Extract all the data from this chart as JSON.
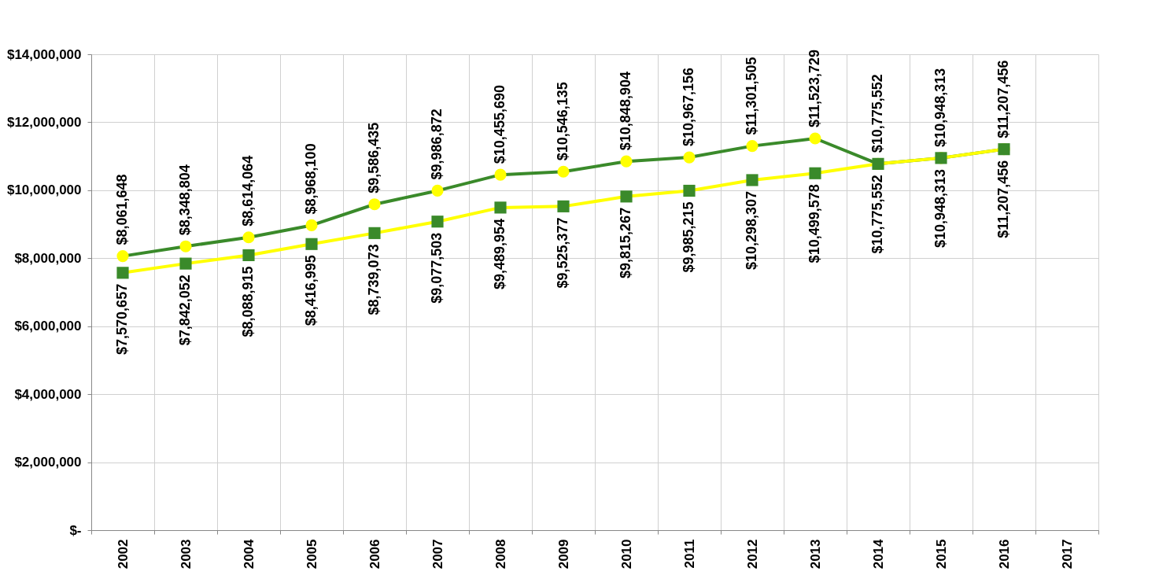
{
  "chart_data": {
    "type": "line",
    "categories": [
      "2002",
      "2003",
      "2004",
      "2005",
      "2006",
      "2007",
      "2008",
      "2009",
      "2010",
      "2011",
      "2012",
      "2013",
      "2014",
      "2015",
      "2016",
      "2017"
    ],
    "series": [
      {
        "color": "#3a8a2a",
        "marker": "circle",
        "values": [
          8061648,
          8348804,
          8614064,
          8968100,
          9586435,
          9986872,
          10455690,
          10546135,
          10848904,
          10967156,
          11301505,
          11523729,
          10775552,
          10948313,
          11207456,
          null
        ],
        "value_labels": [
          "$8,061,648",
          "$8,348,804",
          "$8,614,064",
          "$8,968,100",
          "$9,586,435",
          "$9,986,872",
          "$10,455,690",
          "$10,546,135",
          "$10,848,904",
          "$10,967,156",
          "$11,301,505",
          "$11,523,729",
          "$10,775,552",
          "$10,948,313",
          "$11,207,456",
          null
        ]
      },
      {
        "color": "#ffff00",
        "marker": "square",
        "values": [
          7570657,
          7842052,
          8088915,
          8416995,
          8739073,
          9077503,
          9489954,
          9525377,
          9815267,
          9985215,
          10298307,
          10499578,
          10775552,
          10948313,
          11207456,
          null
        ],
        "value_labels": [
          "$7,570,657",
          "$7,842,052",
          "$8,088,915",
          "$8,416,995",
          "$8,739,073",
          "$9,077,503",
          "$9,489,954",
          "$9,525,377",
          "$9,815,267",
          "$9,985,215",
          "$10,298,307",
          "$10,499,578",
          "$10,775,552",
          "$10,948,313",
          "$11,207,456",
          null
        ]
      }
    ],
    "ylim": [
      0,
      14000000
    ],
    "yticks": [
      {
        "value": 0,
        "label": "$-"
      },
      {
        "value": 2000000,
        "label": "$2,000,000"
      },
      {
        "value": 4000000,
        "label": "$4,000,000"
      },
      {
        "value": 6000000,
        "label": "$6,000,000"
      },
      {
        "value": 8000000,
        "label": "$8,000,000"
      },
      {
        "value": 10000000,
        "label": "$10,000,000"
      },
      {
        "value": 12000000,
        "label": "$12,000,000"
      },
      {
        "value": 14000000,
        "label": "$14,000,000"
      }
    ],
    "grid": true,
    "legend": false
  }
}
